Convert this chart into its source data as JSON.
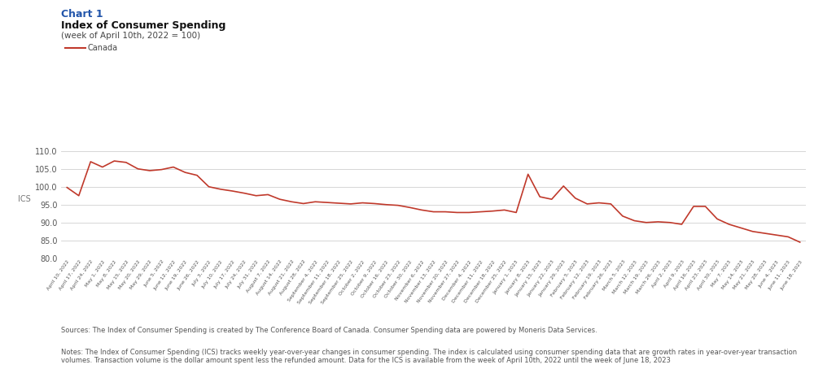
{
  "title_chart": "Chart 1",
  "title_main": "Index of Consumer Spending",
  "title_sub": "(week of April 10th, 2022 = 100)",
  "ylabel": "ICS",
  "legend_label": "Canada",
  "line_color": "#c0392b",
  "background_color": "#ffffff",
  "ylim": [
    80.0,
    113.0
  ],
  "yticks": [
    80.0,
    85.0,
    90.0,
    95.0,
    100.0,
    105.0,
    110.0
  ],
  "source_text": "Sources: The Index of Consumer Spending is created by The Conference Board of Canada. Consumer Spending data are powered by Moneris Data Services.",
  "notes_text": "Notes: The Index of Consumer Spending (ICS) tracks weekly year-over-year changes in consumer spending. The index is calculated using consumer spending data that are growth rates in year-over-year transaction\nvolumes. Transaction volume is the dollar amount spent less the refunded amount. Data for the ICS is available from the week of April 10th, 2022 until the week of June 18, 2023",
  "dates": [
    "April 10, 2022",
    "April 17, 2022",
    "April 24, 2022",
    "May 1, 2022",
    "May 8, 2022",
    "May 15, 2022",
    "May 20, 2022",
    "May 29, 2022",
    "June 5, 2022",
    "June 12, 2022",
    "June 19, 2022",
    "June 26, 2022",
    "July 3, 2022",
    "July 10, 2022",
    "July 17, 2022",
    "July 24, 2022",
    "July 31, 2022",
    "August 7, 2022",
    "August 14, 2022",
    "August 21, 2022",
    "August 28, 2022",
    "September 4, 2022",
    "September 11, 2022",
    "September 18, 2022",
    "September 25, 2022",
    "October 2, 2022",
    "October 9, 2022",
    "October 16, 2022",
    "October 23, 2022",
    "October 30, 2022",
    "November 6, 2022",
    "November 13, 2022",
    "November 20, 2022",
    "November 27, 2022",
    "December 4, 2022",
    "December 11, 2022",
    "December 18, 2022",
    "December 25, 2022",
    "January 1, 2023",
    "January 8, 2023",
    "January 15, 2023",
    "January 22, 2023",
    "January 29, 2023",
    "February 5, 2023",
    "February 12, 2023",
    "February 19, 2023",
    "February 26, 2023",
    "March 5, 2023",
    "March 12, 2023",
    "March 19, 2023",
    "March 26, 2023",
    "April 2, 2023",
    "April 9, 2023",
    "April 16, 2023",
    "April 23, 2023",
    "April 30, 2023",
    "May 7, 2023",
    "May 14, 2023",
    "May 21, 2023",
    "May 28, 2023",
    "June 4, 2023",
    "June 11, 2023",
    "June 18, 2023"
  ],
  "values": [
    99.8,
    97.5,
    107.0,
    105.5,
    107.2,
    106.8,
    105.0,
    104.5,
    104.8,
    105.5,
    104.0,
    103.2,
    100.0,
    99.3,
    98.8,
    98.2,
    97.5,
    97.8,
    96.5,
    95.8,
    95.3,
    95.8,
    95.6,
    95.4,
    95.2,
    95.5,
    95.3,
    95.0,
    94.8,
    94.2,
    93.5,
    93.0,
    93.0,
    92.8,
    92.8,
    93.0,
    93.2,
    93.5,
    92.8,
    103.5,
    97.2,
    96.5,
    100.2,
    96.8,
    95.2,
    95.5,
    95.2,
    91.8,
    90.5,
    90.0,
    90.2,
    90.0,
    89.5,
    94.5,
    94.5,
    91.0,
    89.5,
    88.5,
    87.5,
    87.0,
    86.5,
    86.0,
    84.5
  ]
}
